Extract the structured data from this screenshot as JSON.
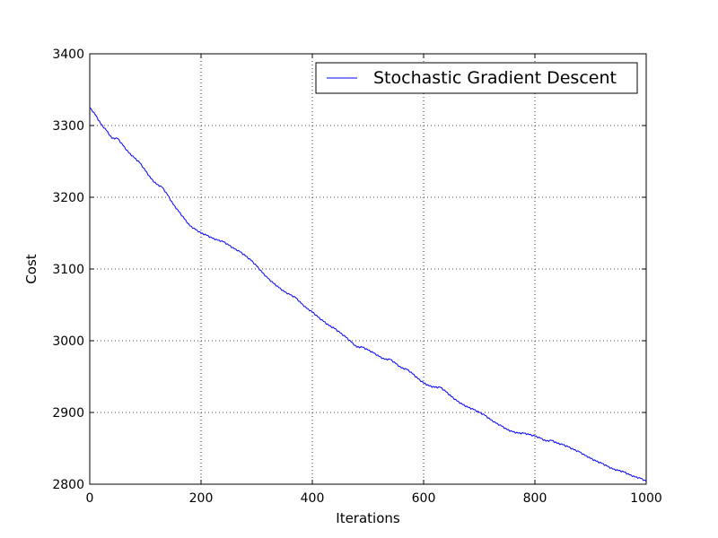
{
  "chart_data": {
    "type": "line",
    "title": "",
    "xlabel": "Iterations",
    "ylabel": "Cost",
    "xlim": [
      0,
      1000
    ],
    "ylim": [
      2800,
      3400
    ],
    "xticks": [
      0,
      200,
      400,
      600,
      800,
      1000
    ],
    "yticks": [
      2800,
      2900,
      3000,
      3100,
      3200,
      3300,
      3400
    ],
    "xtick_labels": [
      "0",
      "200",
      "400",
      "600",
      "800",
      "1000"
    ],
    "ytick_labels": [
      "2800",
      "2900",
      "3000",
      "3100",
      "3200",
      "3300",
      "3400"
    ],
    "grid": true,
    "legend_position": "top-right",
    "series": [
      {
        "name": "Stochastic Gradient Descent",
        "color": "#0000ff",
        "x": [
          0,
          10,
          20,
          30,
          40,
          50,
          60,
          70,
          80,
          90,
          100,
          110,
          120,
          130,
          140,
          150,
          160,
          170,
          180,
          190,
          200,
          210,
          220,
          230,
          240,
          250,
          260,
          270,
          280,
          290,
          300,
          310,
          320,
          330,
          340,
          350,
          360,
          370,
          380,
          390,
          400,
          410,
          420,
          430,
          440,
          450,
          460,
          470,
          480,
          490,
          500,
          510,
          520,
          530,
          540,
          550,
          560,
          570,
          580,
          590,
          600,
          610,
          620,
          630,
          640,
          650,
          660,
          670,
          680,
          690,
          700,
          710,
          720,
          730,
          740,
          750,
          760,
          770,
          780,
          790,
          800,
          810,
          820,
          830,
          840,
          850,
          860,
          870,
          880,
          890,
          900,
          910,
          920,
          930,
          940,
          950,
          960,
          970,
          980,
          990,
          1000
        ],
        "values": [
          3325,
          3315,
          3302,
          3293,
          3282,
          3282,
          3272,
          3262,
          3255,
          3248,
          3237,
          3226,
          3218,
          3214,
          3203,
          3190,
          3180,
          3170,
          3160,
          3155,
          3150,
          3147,
          3143,
          3140,
          3138,
          3133,
          3128,
          3124,
          3118,
          3112,
          3104,
          3095,
          3087,
          3080,
          3074,
          3068,
          3064,
          3060,
          3052,
          3045,
          3040,
          3033,
          3027,
          3021,
          3017,
          3011,
          3005,
          2998,
          2991,
          2991,
          2987,
          2983,
          2978,
          2974,
          2974,
          2968,
          2962,
          2960,
          2954,
          2947,
          2941,
          2937,
          2935,
          2935,
          2929,
          2922,
          2916,
          2911,
          2907,
          2904,
          2900,
          2896,
          2890,
          2885,
          2881,
          2876,
          2873,
          2871,
          2871,
          2869,
          2867,
          2864,
          2860,
          2861,
          2857,
          2855,
          2852,
          2848,
          2845,
          2840,
          2836,
          2832,
          2829,
          2825,
          2821,
          2819,
          2817,
          2813,
          2810,
          2808,
          2804
        ]
      }
    ]
  }
}
